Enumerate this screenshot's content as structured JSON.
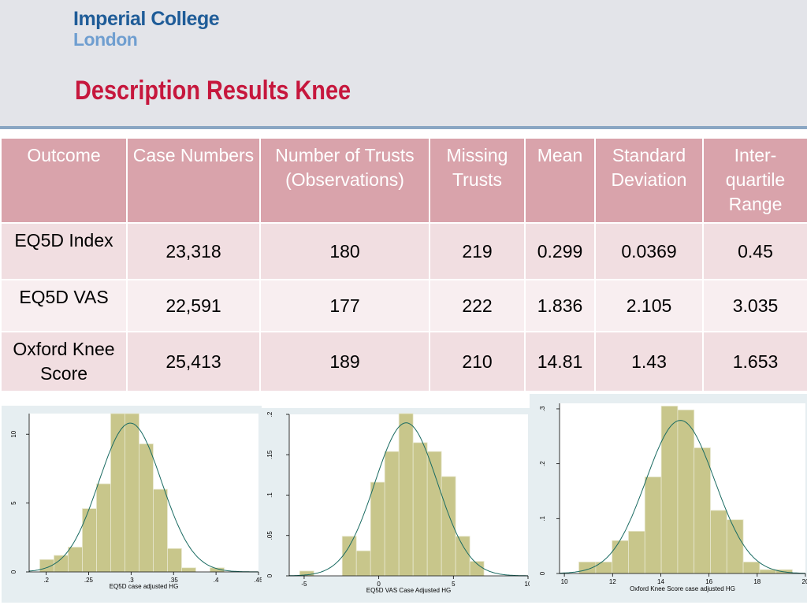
{
  "header": {
    "logo_line1": "Imperial College",
    "logo_line2": "London",
    "title": "Description Results Knee"
  },
  "table": {
    "columns": [
      "Outcome",
      "Case Numbers",
      "Number of Trusts (Observations)",
      "Missing Trusts",
      "Mean",
      "Standard Deviation",
      "Inter-quartile Range"
    ],
    "rows": [
      [
        "EQ5D Index",
        "23,318",
        "180",
        "219",
        "0.299",
        "0.0369",
        "0.45"
      ],
      [
        "EQ5D VAS",
        "22,591",
        "177",
        "222",
        "1.836",
        "2.105",
        "3.035"
      ],
      [
        "Oxford Knee Score",
        "25,413",
        "189",
        "210",
        "14.81",
        "1.43",
        "1.653"
      ]
    ]
  },
  "colors": {
    "bar_fill": "#c8c68b",
    "bar_stroke": "#e8e8d0",
    "curve": "#1a6b62",
    "header_cell": "#d9a3ab",
    "title": "#c6173d"
  },
  "chart_data": [
    {
      "type": "bar",
      "xlabel": "EQ5D case adjusted HG",
      "ylabel": "",
      "xlim": [
        0.18,
        0.45
      ],
      "ylim": [
        0,
        11.5
      ],
      "xticks": [
        0.2,
        0.25,
        0.3,
        0.35,
        0.4,
        0.45
      ],
      "xtick_labels": [
        ".2",
        ".25",
        ".3",
        ".35",
        ".4",
        ".45"
      ],
      "yticks": [
        0,
        5,
        10
      ],
      "ytick_labels": [
        "0",
        "5",
        "10"
      ],
      "bins": [
        {
          "x0": 0.1925,
          "x1": 0.2092,
          "y": 0.9
        },
        {
          "x0": 0.2092,
          "x1": 0.2259,
          "y": 1.2
        },
        {
          "x0": 0.2259,
          "x1": 0.2426,
          "y": 1.8
        },
        {
          "x0": 0.2426,
          "x1": 0.2593,
          "y": 4.6
        },
        {
          "x0": 0.2593,
          "x1": 0.276,
          "y": 6.4
        },
        {
          "x0": 0.276,
          "x1": 0.2927,
          "y": 11.5
        },
        {
          "x0": 0.2927,
          "x1": 0.3094,
          "y": 11.5
        },
        {
          "x0": 0.3094,
          "x1": 0.3261,
          "y": 9.3
        },
        {
          "x0": 0.3261,
          "x1": 0.3428,
          "y": 6.0
        },
        {
          "x0": 0.3428,
          "x1": 0.3595,
          "y": 1.7
        },
        {
          "x0": 0.3595,
          "x1": 0.3762,
          "y": 0.3
        },
        {
          "x0": 0.3929,
          "x1": 0.4096,
          "y": 0.3
        }
      ],
      "normal_curve": {
        "mean": 0.299,
        "sd": 0.0369
      }
    },
    {
      "type": "bar",
      "xlabel": "EQ5D VAS Case Adjusted HG",
      "ylabel": "",
      "xlim": [
        -6,
        10
      ],
      "ylim": [
        0,
        0.2
      ],
      "xticks": [
        -5,
        0,
        5,
        10
      ],
      "xtick_labels": [
        "-5",
        "0",
        "5",
        "10"
      ],
      "yticks": [
        0,
        0.05,
        0.1,
        0.15,
        0.2
      ],
      "ytick_labels": [
        "0",
        ".05",
        ".1",
        ".15",
        ".2"
      ],
      "bins": [
        {
          "x0": -5.3,
          "x1": -4.35,
          "y": 0.006
        },
        {
          "x0": -2.45,
          "x1": -1.5,
          "y": 0.049
        },
        {
          "x0": -1.5,
          "x1": -0.55,
          "y": 0.031
        },
        {
          "x0": -0.55,
          "x1": 0.4,
          "y": 0.116
        },
        {
          "x0": 0.4,
          "x1": 1.35,
          "y": 0.154
        },
        {
          "x0": 1.35,
          "x1": 2.3,
          "y": 0.201
        },
        {
          "x0": 2.3,
          "x1": 3.25,
          "y": 0.165
        },
        {
          "x0": 3.25,
          "x1": 4.2,
          "y": 0.154
        },
        {
          "x0": 4.2,
          "x1": 5.15,
          "y": 0.123
        },
        {
          "x0": 5.15,
          "x1": 6.1,
          "y": 0.049
        },
        {
          "x0": 6.1,
          "x1": 7.05,
          "y": 0.018
        }
      ],
      "normal_curve": {
        "mean": 1.836,
        "sd": 2.105
      }
    },
    {
      "type": "bar",
      "xlabel": "Oxford Knee Score case adjusted HG",
      "ylabel": "",
      "xlim": [
        9.8,
        20
      ],
      "ylim": [
        0,
        0.31
      ],
      "xticks": [
        10,
        12,
        14,
        16,
        18,
        20
      ],
      "xtick_labels": [
        "10",
        "12",
        "14",
        "16",
        "18",
        "20"
      ],
      "yticks": [
        0,
        0.1,
        0.2,
        0.3
      ],
      "ytick_labels": [
        "0",
        ".1",
        ".2",
        ".3"
      ],
      "bins": [
        {
          "x0": 10.6,
          "x1": 11.3,
          "y": 0.021
        },
        {
          "x0": 11.3,
          "x1": 11.98,
          "y": 0.021
        },
        {
          "x0": 11.98,
          "x1": 12.66,
          "y": 0.06
        },
        {
          "x0": 12.66,
          "x1": 13.34,
          "y": 0.077
        },
        {
          "x0": 13.34,
          "x1": 14.02,
          "y": 0.176
        },
        {
          "x0": 14.02,
          "x1": 14.7,
          "y": 0.305
        },
        {
          "x0": 14.7,
          "x1": 15.38,
          "y": 0.298
        },
        {
          "x0": 15.38,
          "x1": 16.06,
          "y": 0.229
        },
        {
          "x0": 16.06,
          "x1": 16.74,
          "y": 0.115
        },
        {
          "x0": 16.74,
          "x1": 17.42,
          "y": 0.098
        },
        {
          "x0": 17.42,
          "x1": 18.1,
          "y": 0.021
        },
        {
          "x0": 18.1,
          "x1": 18.78,
          "y": 0.007
        },
        {
          "x0": 18.78,
          "x1": 19.46,
          "y": 0.007
        }
      ],
      "normal_curve": {
        "mean": 14.81,
        "sd": 1.43
      }
    }
  ]
}
